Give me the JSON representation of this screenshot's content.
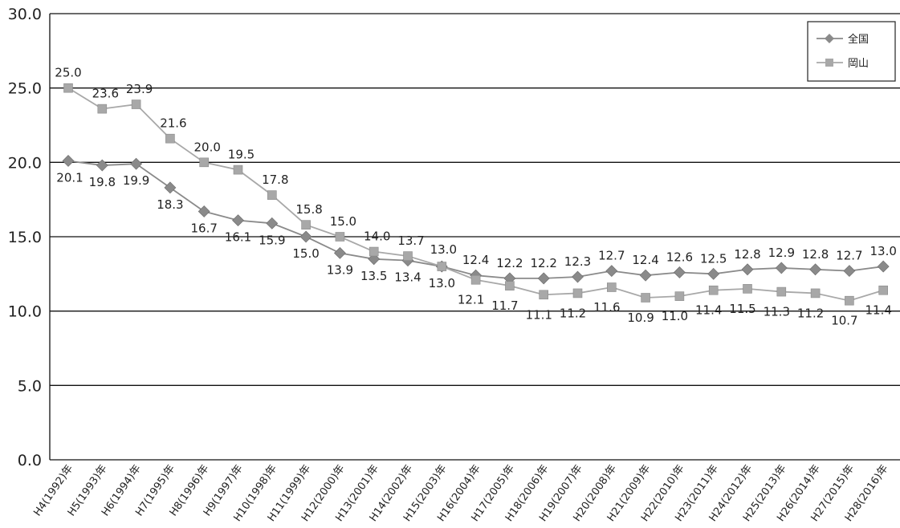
{
  "chart_data": {
    "type": "line",
    "title": "",
    "xlabel": "",
    "ylabel": "",
    "ylim": [
      0,
      30
    ],
    "yticks": [
      "0.0",
      "5.0",
      "10.0",
      "15.0",
      "20.0",
      "25.0",
      "30.0"
    ],
    "grid": "horizontal",
    "legend_position": "top-right",
    "categories": [
      "H4(1992)年",
      "H5(1993)年",
      "H6(1994)年",
      "H7(1995)年",
      "H8(1996)年",
      "H9(1997)年",
      "H10(1998)年",
      "H11(1999)年",
      "H12(2000)年",
      "H13(2001)年",
      "H14(2002)年",
      "H15(2003)年",
      "H16(2004)年",
      "H17(2005)年",
      "H18(2006)年",
      "H19(2007)年",
      "H20(2008)年",
      "H21(2009)年",
      "H22(2010)年",
      "H23(2011)年",
      "H24(2012)年",
      "H25(2013)年",
      "H26(2014)年",
      "H27(2015)年",
      "H28(2016)年"
    ],
    "series": [
      {
        "name": "全国",
        "marker": "diamond",
        "color": "#8a8a8a",
        "values": [
          20.1,
          19.8,
          19.9,
          18.3,
          16.7,
          16.1,
          15.9,
          15.0,
          13.9,
          13.5,
          13.4,
          13.0,
          12.4,
          12.2,
          12.2,
          12.3,
          12.7,
          12.4,
          12.6,
          12.5,
          12.8,
          12.9,
          12.8,
          12.7,
          13.0
        ],
        "labels": [
          "20.1",
          "19.8",
          "19.9",
          "18.3",
          "16.7",
          "16.1",
          "15.9",
          "15.0",
          "13.9",
          "13.5",
          "13.4",
          "13.0",
          "12.4",
          "12.2",
          "12.2",
          "12.3",
          "12.7",
          "12.4",
          "12.6",
          "12.5",
          "12.8",
          "12.9",
          "12.8",
          "12.7",
          "13.0"
        ]
      },
      {
        "name": "岡山",
        "marker": "square",
        "color": "#a8a8a8",
        "values": [
          25.0,
          23.6,
          23.9,
          21.6,
          20.0,
          19.5,
          17.8,
          15.8,
          15.0,
          14.0,
          13.7,
          13.0,
          12.1,
          11.7,
          11.1,
          11.2,
          11.6,
          10.9,
          11.0,
          11.4,
          11.5,
          11.3,
          11.2,
          10.7,
          11.4
        ],
        "labels": [
          "25.0",
          "23.6",
          "23.9",
          "21.6",
          "20.0",
          "19.5",
          "17.8",
          "15.8",
          "15.0",
          "14.0",
          "13.7",
          "13.0",
          "12.1",
          "11.7",
          "11.1",
          "11.2",
          "11.6",
          "10.9",
          "11.0",
          "11.4",
          "11.5",
          "11.3",
          "11.2",
          "10.7",
          "11.4"
        ]
      }
    ]
  }
}
